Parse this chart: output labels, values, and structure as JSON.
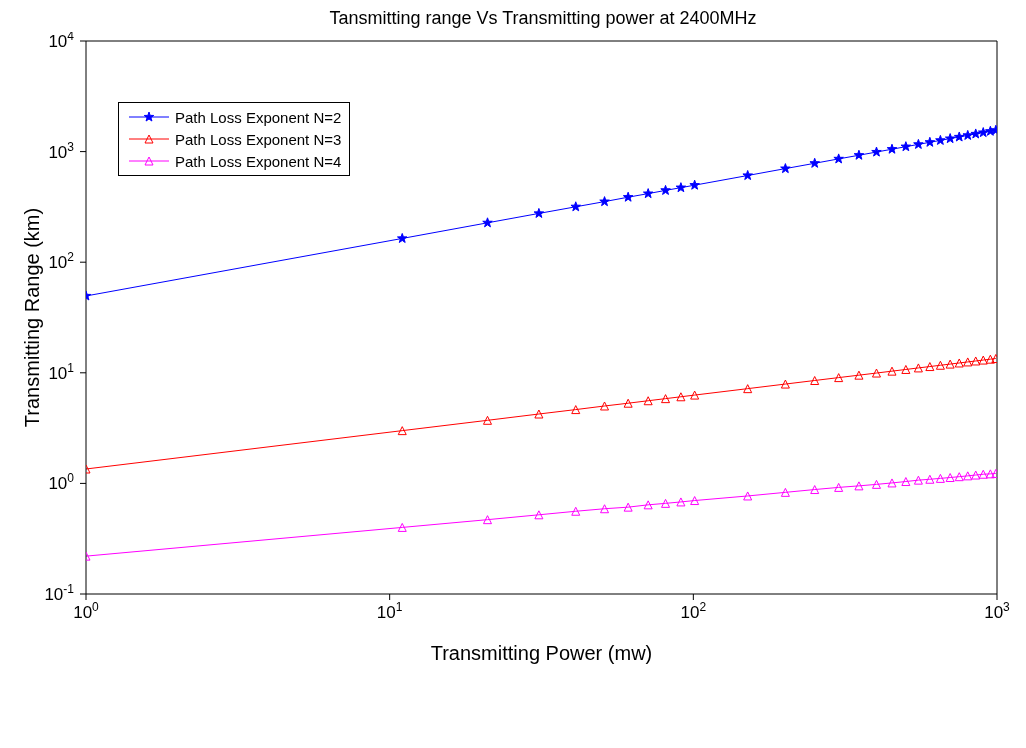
{
  "chart_data": {
    "type": "line",
    "title": "Tansmitting range Vs Transmitting power at 2400MHz",
    "xlabel": "Transmitting Power (mw)",
    "ylabel": "Transmitting Range (km)",
    "x": [
      1,
      11,
      21,
      31,
      41,
      51,
      61,
      71,
      81,
      91,
      101,
      151,
      201,
      251,
      301,
      351,
      401,
      451,
      501,
      551,
      601,
      651,
      701,
      751,
      801,
      851,
      901,
      951,
      991
    ],
    "series": [
      {
        "name": "Path Loss Exponent N=2",
        "color": "#0000ff",
        "marker": "star",
        "values": [
          49.5,
          164,
          227,
          276,
          317,
          353,
          387,
          417,
          446,
          472,
          497,
          608,
          702,
          784,
          859,
          927,
          991,
          1051,
          1108,
          1162,
          1214,
          1263,
          1311,
          1356,
          1401,
          1444,
          1486,
          1527,
          1558
        ]
      },
      {
        "name": "Path Loss Exponent N=3",
        "color": "#ff0000",
        "marker": "triangle",
        "values": [
          1.35,
          3.0,
          3.72,
          4.24,
          4.65,
          5.01,
          5.31,
          5.59,
          5.84,
          6.07,
          6.29,
          7.19,
          7.91,
          8.52,
          9.05,
          9.52,
          9.95,
          10.35,
          10.72,
          11.07,
          11.39,
          11.7,
          11.99,
          12.27,
          12.54,
          12.79,
          13.04,
          13.28,
          13.46
        ]
      },
      {
        "name": "Path Loss Exponent N=4",
        "color": "#ff00ff",
        "marker": "triangle",
        "values": [
          0.22,
          0.4,
          0.47,
          0.52,
          0.56,
          0.59,
          0.61,
          0.64,
          0.66,
          0.68,
          0.7,
          0.77,
          0.83,
          0.88,
          0.92,
          0.95,
          0.98,
          1.01,
          1.04,
          1.07,
          1.09,
          1.11,
          1.13,
          1.15,
          1.17,
          1.19,
          1.21,
          1.22,
          1.23
        ]
      }
    ],
    "log": "xy",
    "xlim": [
      1,
      1000
    ],
    "ylim": [
      0.1,
      10000
    ],
    "xticks": [
      {
        "value": 1,
        "label": "10$^{0}$"
      },
      {
        "value": 10,
        "label": "10$^{1}$"
      },
      {
        "value": 100,
        "label": "10$^{2}$"
      },
      {
        "value": 1000,
        "label": "10$^{3}$"
      }
    ],
    "yticks": [
      {
        "value": 0.1,
        "label": "10$^{-1}$"
      },
      {
        "value": 1,
        "label": "10$^{0}$"
      },
      {
        "value": 10,
        "label": "10$^{1}$"
      },
      {
        "value": 100,
        "label": "10$^{2}$"
      },
      {
        "value": 1000,
        "label": "10$^{3}$"
      },
      {
        "value": 10000,
        "label": "10$^{4}$"
      }
    ],
    "grid": false,
    "legend": "top left",
    "line_style": "solid"
  }
}
